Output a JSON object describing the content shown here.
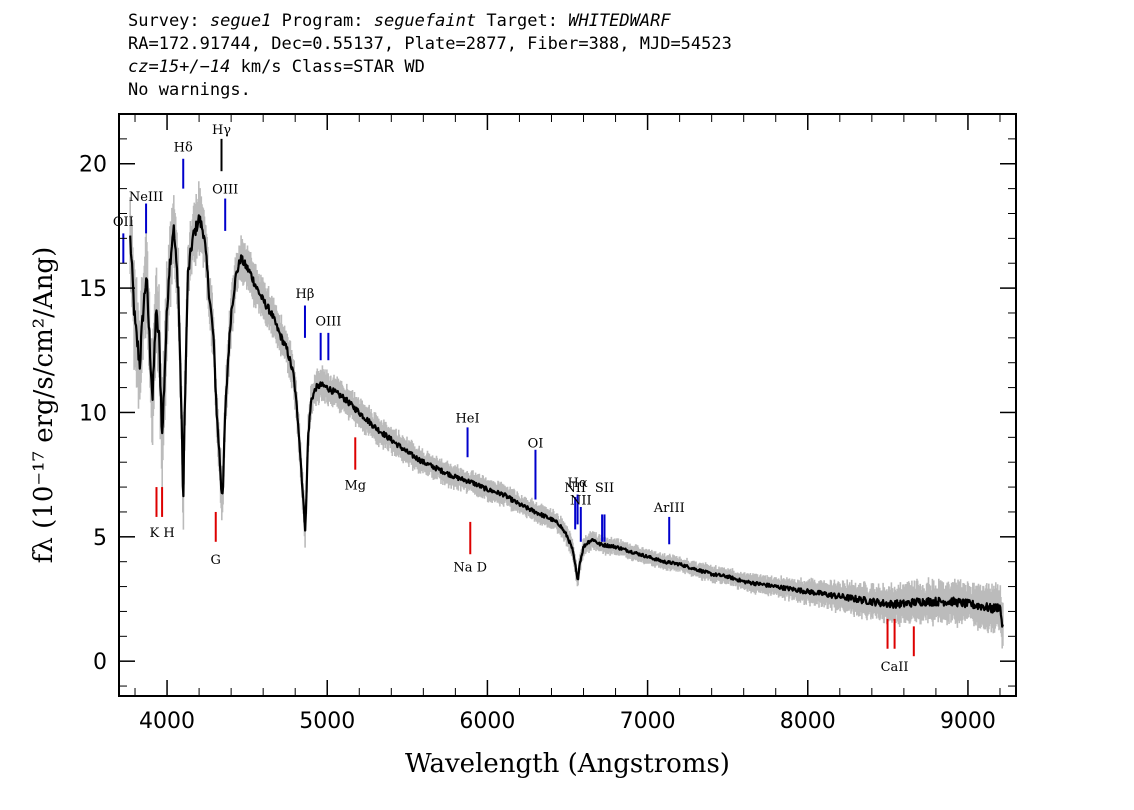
{
  "header": {
    "line1": {
      "survey_label": "Survey:",
      "survey": "segue1",
      "program_label": "Program:",
      "program": "seguefaint",
      "target_label": "Target:",
      "target": "WHITEDWARF"
    },
    "line2": "RA=172.91744, Dec=0.55137, Plate=2877, Fiber=388, MJD=54523",
    "line3": {
      "cz": "cz=15+/−14",
      "rest": " km/s Class=STAR WD"
    },
    "line4": "No warnings."
  },
  "chart_data": {
    "type": "line",
    "xlabel": "Wavelength (Angstroms)",
    "ylabel": "fλ (10⁻¹⁷ erg/s/cm²/Ang)",
    "xlim": [
      3700,
      9300
    ],
    "ylim": [
      -1.4,
      22
    ],
    "xticks": [
      4000,
      5000,
      6000,
      7000,
      8000,
      9000
    ],
    "yticks": [
      0,
      5,
      10,
      15,
      20
    ],
    "colors": {
      "spectrum": "#000000",
      "error_band": "#bbbbbb",
      "emission": "#0000cc",
      "absorption": "#dd0000",
      "hgamma": "#000000"
    },
    "series": [
      {
        "x": [
          3770,
          3800,
          3830,
          3850,
          3870,
          3890,
          3910,
          3930,
          3950,
          3970,
          3990,
          4010,
          4040,
          4070,
          4090,
          4101,
          4110,
          4130,
          4160,
          4200,
          4230,
          4260,
          4290,
          4310,
          4330,
          4340,
          4350,
          4360,
          4380,
          4400,
          4430,
          4460,
          4490,
          4520,
          4560,
          4600,
          4650,
          4700,
          4750,
          4790,
          4820,
          4840,
          4855,
          4862,
          4870,
          4880,
          4900,
          4930,
          4960,
          5000,
          5050,
          5100,
          5150,
          5200,
          5300,
          5400,
          5500,
          5600,
          5700,
          5800,
          5900,
          6000,
          6100,
          6200,
          6300,
          6400,
          6450,
          6500,
          6530,
          6550,
          6563,
          6575,
          6600,
          6630,
          6660,
          6700,
          6800,
          6900,
          7000,
          7100,
          7200,
          7300,
          7400,
          7500,
          7600,
          7700,
          7800,
          7900,
          8000,
          8100,
          8200,
          8300,
          8400,
          8500,
          8600,
          8700,
          8800,
          8900,
          9000,
          9100,
          9150,
          9200,
          9220
        ],
        "y": [
          17,
          13.5,
          12,
          14,
          15.5,
          13,
          10.5,
          14,
          13,
          9,
          12.5,
          15.5,
          17.5,
          15,
          10,
          6.2,
          10,
          15.5,
          17,
          17.8,
          17.2,
          15,
          13,
          10,
          8,
          6.8,
          7,
          9.5,
          12,
          14,
          15.5,
          16.2,
          15.9,
          15.6,
          15,
          14.5,
          14,
          13.2,
          12.5,
          11.5,
          9.5,
          7.5,
          6,
          5.4,
          6.5,
          9,
          10.5,
          11,
          11.1,
          11,
          10.8,
          10.6,
          10.3,
          10,
          9.4,
          8.9,
          8.4,
          8,
          7.7,
          7.4,
          7.2,
          6.9,
          6.7,
          6.3,
          6,
          5.7,
          5.5,
          5,
          4.5,
          3.8,
          3.2,
          3.9,
          4.6,
          4.8,
          4.9,
          4.7,
          4.6,
          4.4,
          4.2,
          4,
          3.9,
          3.7,
          3.5,
          3.4,
          3.2,
          3.1,
          3,
          2.9,
          2.8,
          2.7,
          2.6,
          2.5,
          2.4,
          2.3,
          2.3,
          2.4,
          2.4,
          2.4,
          2.3,
          2.2,
          2.1,
          2.2,
          1.2
        ],
        "noise": [
          0.8,
          1.0,
          1.0,
          0.9,
          0.9,
          1.0,
          1.0,
          0.9,
          0.9,
          1.0,
          1.0,
          0.8,
          0.7,
          0.7,
          0.7,
          0.7,
          0.7,
          0.7,
          0.6,
          0.6,
          0.6,
          0.6,
          0.5,
          0.5,
          0.5,
          0.5,
          0.5,
          0.5,
          0.5,
          0.5,
          0.4,
          0.4,
          0.4,
          0.4,
          0.4,
          0.35,
          0.35,
          0.35,
          0.35,
          0.35,
          0.35,
          0.35,
          0.35,
          0.35,
          0.35,
          0.35,
          0.3,
          0.3,
          0.3,
          0.3,
          0.28,
          0.28,
          0.27,
          0.27,
          0.26,
          0.25,
          0.24,
          0.23,
          0.22,
          0.21,
          0.21,
          0.2,
          0.2,
          0.19,
          0.19,
          0.18,
          0.18,
          0.18,
          0.18,
          0.18,
          0.18,
          0.18,
          0.17,
          0.17,
          0.17,
          0.16,
          0.15,
          0.14,
          0.14,
          0.14,
          0.14,
          0.14,
          0.15,
          0.15,
          0.16,
          0.17,
          0.18,
          0.2,
          0.22,
          0.24,
          0.27,
          0.3,
          0.32,
          0.34,
          0.36,
          0.38,
          0.38,
          0.38,
          0.38,
          0.4,
          0.4,
          0.4,
          0.4
        ]
      }
    ],
    "spectral_lines": [
      {
        "label": "OII",
        "x": 3727,
        "y1": 16.0,
        "y2": 17.2,
        "label_y": 17.5,
        "kind": "emission"
      },
      {
        "label": "NeIII",
        "x": 3869,
        "y1": 17.2,
        "y2": 18.4,
        "label_y": 18.5,
        "kind": "emission"
      },
      {
        "label": "Hδ",
        "x": 4101,
        "y1": 19.0,
        "y2": 20.2,
        "label_y": 20.5,
        "kind": "emission"
      },
      {
        "label": "Hγ",
        "x": 4340,
        "y1": 19.7,
        "y2": 21.0,
        "label_y": 21.2,
        "kind": "hgamma"
      },
      {
        "label": "OIII",
        "x": 4363,
        "y1": 17.3,
        "y2": 18.6,
        "label_y": 18.8,
        "kind": "emission"
      },
      {
        "label": "Hβ",
        "x": 4861,
        "y1": 13.0,
        "y2": 14.3,
        "label_y": 14.6,
        "kind": "emission"
      },
      {
        "label": "",
        "x": 4959,
        "y1": 12.1,
        "y2": 13.2,
        "label_y": 0,
        "kind": "emission"
      },
      {
        "label": "OIII",
        "x": 5007,
        "y1": 12.1,
        "y2": 13.2,
        "label_y": 13.5,
        "kind": "emission"
      },
      {
        "label": "HeI",
        "x": 5876,
        "y1": 8.2,
        "y2": 9.4,
        "label_y": 9.6,
        "kind": "emission"
      },
      {
        "label": "OI",
        "x": 6300,
        "y1": 6.5,
        "y2": 8.5,
        "label_y": 8.6,
        "kind": "emission"
      },
      {
        "label": "NII",
        "x": 6548,
        "y1": 5.3,
        "y2": 6.6,
        "label_y": 6.8,
        "kind": "emission"
      },
      {
        "label": "Hα",
        "x": 6563,
        "y1": 5.5,
        "y2": 6.7,
        "label_y": 7.0,
        "kind": "emission"
      },
      {
        "label": "NII",
        "x": 6583,
        "y1": 4.8,
        "y2": 6.2,
        "label_y": 6.3,
        "kind": "emission"
      },
      {
        "label": "",
        "x": 6716,
        "y1": 4.8,
        "y2": 5.9,
        "label_y": 0,
        "kind": "emission"
      },
      {
        "label": "SII",
        "x": 6731,
        "y1": 4.8,
        "y2": 5.9,
        "label_y": 6.8,
        "kind": "emission"
      },
      {
        "label": "ArIII",
        "x": 7135,
        "y1": 4.7,
        "y2": 5.8,
        "label_y": 6.0,
        "kind": "emission"
      },
      {
        "label": "",
        "x": 3934,
        "y1": 5.8,
        "y2": 7.0,
        "label_y": 0,
        "kind": "absorption"
      },
      {
        "label": "K H",
        "x": 3969,
        "y1": 5.8,
        "y2": 7.0,
        "label_y": 5.0,
        "kind": "absorption"
      },
      {
        "label": "G",
        "x": 4304,
        "y1": 4.8,
        "y2": 6.0,
        "label_y": 3.9,
        "kind": "absorption"
      },
      {
        "label": "Mg",
        "x": 5175,
        "y1": 7.7,
        "y2": 9.0,
        "label_y": 6.9,
        "kind": "absorption"
      },
      {
        "label": "Na D",
        "x": 5893,
        "y1": 4.3,
        "y2": 5.6,
        "label_y": 3.6,
        "kind": "absorption"
      },
      {
        "label": "",
        "x": 8498,
        "y1": 0.5,
        "y2": 1.7,
        "label_y": 0,
        "kind": "absorption"
      },
      {
        "label": "CaII",
        "x": 8542,
        "y1": 0.5,
        "y2": 1.7,
        "label_y": -0.4,
        "kind": "absorption"
      },
      {
        "label": "",
        "x": 8662,
        "y1": 0.2,
        "y2": 1.4,
        "label_y": 0,
        "kind": "absorption"
      }
    ]
  }
}
